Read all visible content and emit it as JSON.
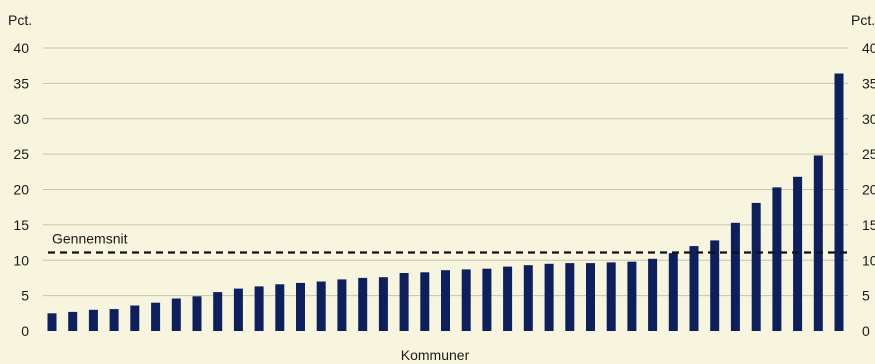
{
  "chart_data": {
    "type": "bar",
    "unit_left": "Pct.",
    "unit_right": "Pct.",
    "xlabel": "Kommuner",
    "ylim": [
      0,
      40
    ],
    "yticks": [
      0,
      5,
      10,
      15,
      20,
      25,
      30,
      35,
      40
    ],
    "grid": true,
    "bar_color": "#0d1f5c",
    "values": [
      2.5,
      2.7,
      3.0,
      3.1,
      3.6,
      4.0,
      4.6,
      4.9,
      5.5,
      6.0,
      6.3,
      6.6,
      6.8,
      7.0,
      7.3,
      7.5,
      7.6,
      8.2,
      8.3,
      8.6,
      8.7,
      8.8,
      9.1,
      9.3,
      9.5,
      9.6,
      9.6,
      9.7,
      9.8,
      10.2,
      11.0,
      12.0,
      12.8,
      15.3,
      18.1,
      20.3,
      21.8,
      24.8,
      36.4
    ],
    "reference_line": {
      "label": "Gennemsnit",
      "value": 11.1
    }
  }
}
